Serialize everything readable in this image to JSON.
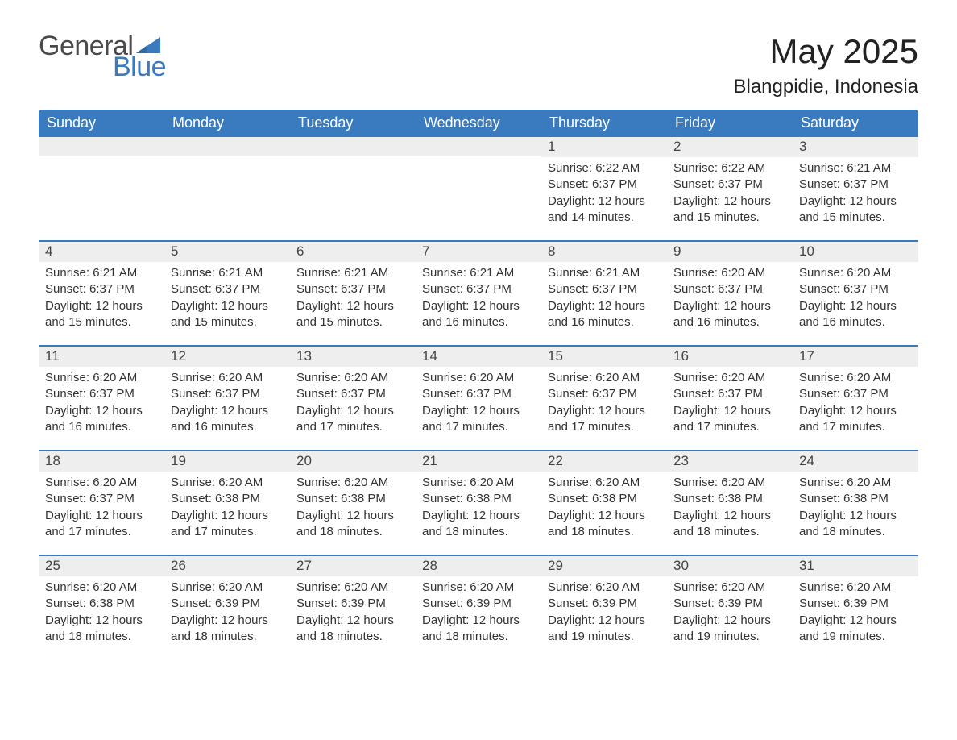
{
  "brand": {
    "word1": "General",
    "word2": "Blue",
    "text_color_1": "#4a4a4a",
    "text_color_2": "#3a7abf",
    "icon_color": "#3a7abf"
  },
  "header": {
    "month_title": "May 2025",
    "location": "Blangpidie, Indonesia"
  },
  "colors": {
    "header_bg": "#3a7abf",
    "header_text": "#ffffff",
    "daynum_bg": "#eeeeee",
    "week_divider": "#3a7abf",
    "body_text": "#333333",
    "page_bg": "#ffffff"
  },
  "day_names": [
    "Sunday",
    "Monday",
    "Tuesday",
    "Wednesday",
    "Thursday",
    "Friday",
    "Saturday"
  ],
  "labels": {
    "sunrise": "Sunrise:",
    "sunset": "Sunset:",
    "daylight": "Daylight:"
  },
  "weeks": [
    [
      null,
      null,
      null,
      null,
      {
        "day": "1",
        "sunrise": "6:22 AM",
        "sunset": "6:37 PM",
        "daylight": "12 hours and 14 minutes."
      },
      {
        "day": "2",
        "sunrise": "6:22 AM",
        "sunset": "6:37 PM",
        "daylight": "12 hours and 15 minutes."
      },
      {
        "day": "3",
        "sunrise": "6:21 AM",
        "sunset": "6:37 PM",
        "daylight": "12 hours and 15 minutes."
      }
    ],
    [
      {
        "day": "4",
        "sunrise": "6:21 AM",
        "sunset": "6:37 PM",
        "daylight": "12 hours and 15 minutes."
      },
      {
        "day": "5",
        "sunrise": "6:21 AM",
        "sunset": "6:37 PM",
        "daylight": "12 hours and 15 minutes."
      },
      {
        "day": "6",
        "sunrise": "6:21 AM",
        "sunset": "6:37 PM",
        "daylight": "12 hours and 15 minutes."
      },
      {
        "day": "7",
        "sunrise": "6:21 AM",
        "sunset": "6:37 PM",
        "daylight": "12 hours and 16 minutes."
      },
      {
        "day": "8",
        "sunrise": "6:21 AM",
        "sunset": "6:37 PM",
        "daylight": "12 hours and 16 minutes."
      },
      {
        "day": "9",
        "sunrise": "6:20 AM",
        "sunset": "6:37 PM",
        "daylight": "12 hours and 16 minutes."
      },
      {
        "day": "10",
        "sunrise": "6:20 AM",
        "sunset": "6:37 PM",
        "daylight": "12 hours and 16 minutes."
      }
    ],
    [
      {
        "day": "11",
        "sunrise": "6:20 AM",
        "sunset": "6:37 PM",
        "daylight": "12 hours and 16 minutes."
      },
      {
        "day": "12",
        "sunrise": "6:20 AM",
        "sunset": "6:37 PM",
        "daylight": "12 hours and 16 minutes."
      },
      {
        "day": "13",
        "sunrise": "6:20 AM",
        "sunset": "6:37 PM",
        "daylight": "12 hours and 17 minutes."
      },
      {
        "day": "14",
        "sunrise": "6:20 AM",
        "sunset": "6:37 PM",
        "daylight": "12 hours and 17 minutes."
      },
      {
        "day": "15",
        "sunrise": "6:20 AM",
        "sunset": "6:37 PM",
        "daylight": "12 hours and 17 minutes."
      },
      {
        "day": "16",
        "sunrise": "6:20 AM",
        "sunset": "6:37 PM",
        "daylight": "12 hours and 17 minutes."
      },
      {
        "day": "17",
        "sunrise": "6:20 AM",
        "sunset": "6:37 PM",
        "daylight": "12 hours and 17 minutes."
      }
    ],
    [
      {
        "day": "18",
        "sunrise": "6:20 AM",
        "sunset": "6:37 PM",
        "daylight": "12 hours and 17 minutes."
      },
      {
        "day": "19",
        "sunrise": "6:20 AM",
        "sunset": "6:38 PM",
        "daylight": "12 hours and 17 minutes."
      },
      {
        "day": "20",
        "sunrise": "6:20 AM",
        "sunset": "6:38 PM",
        "daylight": "12 hours and 18 minutes."
      },
      {
        "day": "21",
        "sunrise": "6:20 AM",
        "sunset": "6:38 PM",
        "daylight": "12 hours and 18 minutes."
      },
      {
        "day": "22",
        "sunrise": "6:20 AM",
        "sunset": "6:38 PM",
        "daylight": "12 hours and 18 minutes."
      },
      {
        "day": "23",
        "sunrise": "6:20 AM",
        "sunset": "6:38 PM",
        "daylight": "12 hours and 18 minutes."
      },
      {
        "day": "24",
        "sunrise": "6:20 AM",
        "sunset": "6:38 PM",
        "daylight": "12 hours and 18 minutes."
      }
    ],
    [
      {
        "day": "25",
        "sunrise": "6:20 AM",
        "sunset": "6:38 PM",
        "daylight": "12 hours and 18 minutes."
      },
      {
        "day": "26",
        "sunrise": "6:20 AM",
        "sunset": "6:39 PM",
        "daylight": "12 hours and 18 minutes."
      },
      {
        "day": "27",
        "sunrise": "6:20 AM",
        "sunset": "6:39 PM",
        "daylight": "12 hours and 18 minutes."
      },
      {
        "day": "28",
        "sunrise": "6:20 AM",
        "sunset": "6:39 PM",
        "daylight": "12 hours and 18 minutes."
      },
      {
        "day": "29",
        "sunrise": "6:20 AM",
        "sunset": "6:39 PM",
        "daylight": "12 hours and 19 minutes."
      },
      {
        "day": "30",
        "sunrise": "6:20 AM",
        "sunset": "6:39 PM",
        "daylight": "12 hours and 19 minutes."
      },
      {
        "day": "31",
        "sunrise": "6:20 AM",
        "sunset": "6:39 PM",
        "daylight": "12 hours and 19 minutes."
      }
    ]
  ]
}
